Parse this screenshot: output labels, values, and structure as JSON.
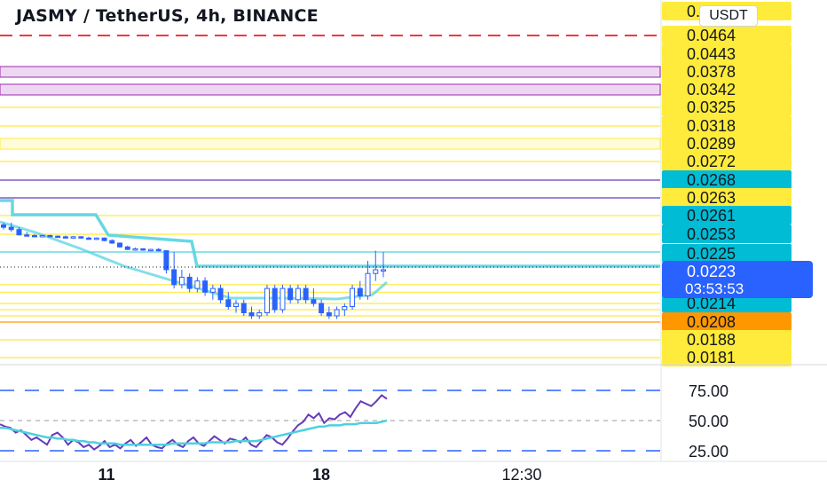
{
  "header": {
    "title": "JASMY / TetherUS, 4h, BINANCE",
    "currency": "USDT"
  },
  "chart_data": [
    {
      "type": "candlestick",
      "title": "JASMY / TetherUS, 4h, BINANCE",
      "price_scale_labels": [
        {
          "value": "0.0649",
          "bg": "#ffeb3b",
          "fg": "#131722"
        },
        {
          "value": "0.0464",
          "bg": "#ffeb3b",
          "fg": "#131722"
        },
        {
          "value": "0.0443",
          "bg": "#ffeb3b",
          "fg": "#131722"
        },
        {
          "value": "0.0378",
          "bg": "#ffeb3b",
          "fg": "#131722"
        },
        {
          "value": "0.0342",
          "bg": "#ffeb3b",
          "fg": "#131722"
        },
        {
          "value": "0.0325",
          "bg": "#ffeb3b",
          "fg": "#131722"
        },
        {
          "value": "0.0318",
          "bg": "#ffeb3b",
          "fg": "#131722"
        },
        {
          "value": "0.0289",
          "bg": "#ffeb3b",
          "fg": "#131722"
        },
        {
          "value": "0.0272",
          "bg": "#ffeb3b",
          "fg": "#131722"
        },
        {
          "value": "0.0268",
          "bg": "#00bcd4",
          "fg": "#131722"
        },
        {
          "value": "0.0263",
          "bg": "#ffeb3b",
          "fg": "#131722"
        },
        {
          "value": "0.0261",
          "bg": "#00bcd4",
          "fg": "#131722"
        },
        {
          "value": "0.0253",
          "bg": "#00bcd4",
          "fg": "#131722"
        },
        {
          "value": "0.0225",
          "bg": "#00bcd4",
          "fg": "#131722"
        },
        {
          "value": "0.0214",
          "bg": "#00bcd4",
          "fg": "#131722"
        },
        {
          "value": "0.0208",
          "bg": "#ff9800",
          "fg": "#131722"
        },
        {
          "value": "0.0188",
          "bg": "#ffeb3b",
          "fg": "#131722"
        },
        {
          "value": "0.0181",
          "bg": "#ffeb3b",
          "fg": "#131722"
        }
      ],
      "current_price": {
        "value": "0.0223",
        "countdown": "03:53:53",
        "color": "#2962ff"
      },
      "levels": [
        {
          "price": 0.0464,
          "style": "dashed",
          "color": "#f23645"
        },
        {
          "price": 0.0378,
          "color": "#9c27b0",
          "zone": true
        },
        {
          "price": 0.0342,
          "color": "#9c27b0",
          "zone": true
        },
        {
          "price": 0.0325,
          "color": "#ffeb3b"
        },
        {
          "price": 0.0318,
          "color": "#ffeb3b"
        },
        {
          "price": 0.0289,
          "color": "#ffeb3b",
          "zone": true
        },
        {
          "price": 0.0272,
          "color": "#ffeb3b"
        },
        {
          "price": 0.0268,
          "color": "#673ab7"
        },
        {
          "price": 0.0263,
          "color": "#673ab7"
        },
        {
          "price": 0.0261,
          "color": "#ffeb3b"
        },
        {
          "price": 0.0253,
          "color": "#ffeb3b"
        },
        {
          "price": 0.0225,
          "color": "#4dd0e1"
        },
        {
          "price": 0.0214,
          "color": "#ffeb3b"
        },
        {
          "price": 0.0208,
          "color": "#ff9800"
        },
        {
          "price": 0.0188,
          "color": "#ffeb3b"
        },
        {
          "price": 0.0181,
          "color": "#ffeb3b"
        }
      ],
      "candle_color": "#2962ff",
      "candles": [
        {
          "o": 0.0257,
          "h": 0.0258,
          "l": 0.0255,
          "c": 0.0256
        },
        {
          "o": 0.0256,
          "h": 0.0258,
          "l": 0.0254,
          "c": 0.0255
        },
        {
          "o": 0.0255,
          "h": 0.0256,
          "l": 0.0251,
          "c": 0.0252
        },
        {
          "o": 0.0252,
          "h": 0.0254,
          "l": 0.025,
          "c": 0.0251
        },
        {
          "o": 0.0251,
          "h": 0.0253,
          "l": 0.0249,
          "c": 0.025
        },
        {
          "o": 0.025,
          "h": 0.0252,
          "l": 0.0248,
          "c": 0.0251
        },
        {
          "o": 0.0251,
          "h": 0.0252,
          "l": 0.0249,
          "c": 0.025
        },
        {
          "o": 0.025,
          "h": 0.0251,
          "l": 0.0248,
          "c": 0.0249
        },
        {
          "o": 0.0249,
          "h": 0.0251,
          "l": 0.0247,
          "c": 0.0248
        },
        {
          "o": 0.0248,
          "h": 0.025,
          "l": 0.0246,
          "c": 0.0249
        },
        {
          "o": 0.0249,
          "h": 0.025,
          "l": 0.0246,
          "c": 0.0247
        },
        {
          "o": 0.0247,
          "h": 0.0249,
          "l": 0.0245,
          "c": 0.0246
        },
        {
          "o": 0.0246,
          "h": 0.0248,
          "l": 0.0244,
          "c": 0.0247
        },
        {
          "o": 0.0247,
          "h": 0.0248,
          "l": 0.0242,
          "c": 0.0243
        },
        {
          "o": 0.0243,
          "h": 0.0245,
          "l": 0.0238,
          "c": 0.0239
        },
        {
          "o": 0.0239,
          "h": 0.024,
          "l": 0.0232,
          "c": 0.0233
        },
        {
          "o": 0.0233,
          "h": 0.0235,
          "l": 0.0228,
          "c": 0.0229
        },
        {
          "o": 0.0229,
          "h": 0.0232,
          "l": 0.0227,
          "c": 0.023
        },
        {
          "o": 0.023,
          "h": 0.0231,
          "l": 0.0227,
          "c": 0.0228
        },
        {
          "o": 0.0228,
          "h": 0.023,
          "l": 0.0226,
          "c": 0.0229
        },
        {
          "o": 0.0229,
          "h": 0.0231,
          "l": 0.0226,
          "c": 0.0227
        },
        {
          "o": 0.0227,
          "h": 0.0228,
          "l": 0.0222,
          "c": 0.0223
        },
        {
          "o": 0.0223,
          "h": 0.0225,
          "l": 0.0218,
          "c": 0.0219
        },
        {
          "o": 0.0219,
          "h": 0.0223,
          "l": 0.0218,
          "c": 0.0221
        },
        {
          "o": 0.0221,
          "h": 0.0222,
          "l": 0.0217,
          "c": 0.0218
        },
        {
          "o": 0.0218,
          "h": 0.0221,
          "l": 0.0217,
          "c": 0.022
        },
        {
          "o": 0.022,
          "h": 0.0221,
          "l": 0.0216,
          "c": 0.0217
        },
        {
          "o": 0.0217,
          "h": 0.0219,
          "l": 0.0215,
          "c": 0.0218
        },
        {
          "o": 0.0218,
          "h": 0.0219,
          "l": 0.0214,
          "c": 0.0215
        },
        {
          "o": 0.0215,
          "h": 0.0217,
          "l": 0.0212,
          "c": 0.0213
        },
        {
          "o": 0.0213,
          "h": 0.0215,
          "l": 0.0211,
          "c": 0.0214
        },
        {
          "o": 0.0214,
          "h": 0.0215,
          "l": 0.021,
          "c": 0.0211
        },
        {
          "o": 0.0211,
          "h": 0.0213,
          "l": 0.0209,
          "c": 0.021
        },
        {
          "o": 0.021,
          "h": 0.0212,
          "l": 0.0209,
          "c": 0.0211
        },
        {
          "o": 0.0211,
          "h": 0.0219,
          "l": 0.021,
          "c": 0.0218
        },
        {
          "o": 0.0218,
          "h": 0.0219,
          "l": 0.0211,
          "c": 0.0212
        },
        {
          "o": 0.0212,
          "h": 0.0219,
          "l": 0.0211,
          "c": 0.0218
        },
        {
          "o": 0.0218,
          "h": 0.0219,
          "l": 0.0214,
          "c": 0.0215
        },
        {
          "o": 0.0215,
          "h": 0.0219,
          "l": 0.0214,
          "c": 0.0218
        },
        {
          "o": 0.0218,
          "h": 0.0219,
          "l": 0.0214,
          "c": 0.0215
        },
        {
          "o": 0.0215,
          "h": 0.0218,
          "l": 0.0213,
          "c": 0.0214
        },
        {
          "o": 0.0214,
          "h": 0.0215,
          "l": 0.021,
          "c": 0.0211
        },
        {
          "o": 0.0211,
          "h": 0.0213,
          "l": 0.0209,
          "c": 0.021
        },
        {
          "o": 0.021,
          "h": 0.0213,
          "l": 0.0209,
          "c": 0.0212
        },
        {
          "o": 0.0212,
          "h": 0.0214,
          "l": 0.021,
          "c": 0.0213
        },
        {
          "o": 0.0213,
          "h": 0.0219,
          "l": 0.0212,
          "c": 0.0218
        },
        {
          "o": 0.0218,
          "h": 0.022,
          "l": 0.0215,
          "c": 0.0216
        },
        {
          "o": 0.0216,
          "h": 0.0224,
          "l": 0.0215,
          "c": 0.0222
        },
        {
          "o": 0.0222,
          "h": 0.0227,
          "l": 0.022,
          "c": 0.0223
        },
        {
          "o": 0.0223,
          "h": 0.0225,
          "l": 0.0221,
          "c": 0.0223
        }
      ],
      "x_labels": [
        "11",
        "18",
        "12:30"
      ]
    },
    {
      "type": "line",
      "indicator": "RSI",
      "y_labels": [
        "75.00",
        "50.00",
        "25.00"
      ],
      "bands": [
        75,
        50,
        25
      ],
      "series": [
        {
          "color": "#673ab7",
          "values": [
            47,
            45,
            44,
            40,
            42,
            38,
            34,
            36,
            33,
            30,
            38,
            40,
            36,
            30,
            34,
            32,
            28,
            30,
            26,
            29,
            33,
            28,
            30,
            27,
            31,
            34,
            29,
            32,
            36,
            30,
            28,
            27,
            31,
            34,
            30,
            28,
            33,
            36,
            31,
            29,
            33,
            37,
            34,
            31,
            35,
            34,
            32,
            36,
            30,
            28,
            33,
            38,
            36,
            32,
            30,
            35,
            41,
            46,
            49,
            55,
            52,
            56,
            48,
            52,
            51,
            55,
            57,
            53,
            60,
            66,
            64,
            62,
            66,
            71,
            68
          ]
        },
        {
          "color": "#4dd0e1",
          "values": [
            44,
            44,
            43,
            42,
            41,
            40,
            39,
            38,
            37,
            36,
            36,
            35,
            35,
            34,
            34,
            33,
            33,
            32,
            32,
            31,
            31,
            31,
            31,
            30,
            30,
            30,
            30,
            30,
            30,
            30,
            30,
            30,
            30,
            31,
            31,
            31,
            31,
            31,
            31,
            31,
            32,
            32,
            32,
            32,
            32,
            33,
            33,
            33,
            33,
            33,
            34,
            35,
            36,
            37,
            38,
            39,
            40,
            41,
            42,
            43,
            44,
            45,
            45,
            46,
            46,
            46,
            47,
            47,
            47,
            48,
            48,
            48,
            48,
            49,
            50
          ]
        }
      ]
    }
  ]
}
